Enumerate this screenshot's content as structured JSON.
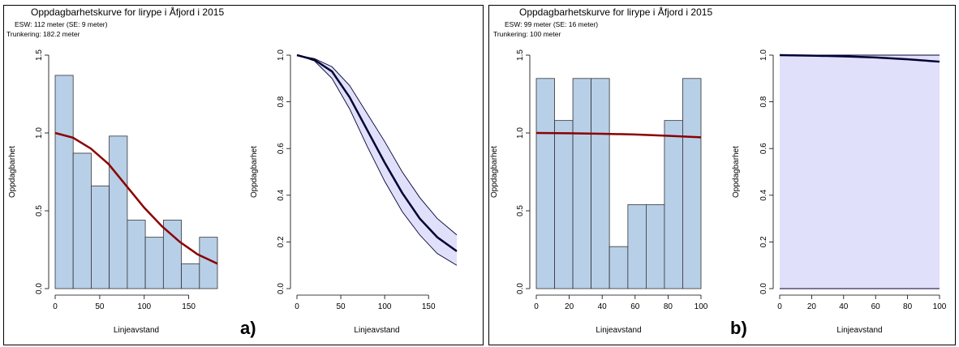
{
  "panels": [
    {
      "label": "a)",
      "title": "Oppdagbarhetskurve for lirype i Åfjord i 2015",
      "esw": "ESW:  112 meter (SE: 9 meter)",
      "truncation": "Trunkering:  182.2 meter"
    },
    {
      "label": "b)",
      "title": "Oppdagbarhetskurve for lirype i Åfjord i 2015",
      "esw": "ESW:  99 meter (SE: 16 meter)",
      "truncation": "Trunkering:  100 meter"
    }
  ],
  "colors": {
    "bar_fill": "#b8cfe8",
    "fit_line": "#8b0000",
    "ci_band": "#e0e0fa",
    "mean_line": "#000033"
  },
  "chart_data": [
    {
      "type": "bar",
      "panel": "a",
      "xlabel": "Linjeavstand",
      "ylabel": "Oppdagbarhet",
      "xlim": [
        0,
        182.2
      ],
      "ylim": [
        0,
        1.5
      ],
      "x_ticks": [
        0,
        50,
        100,
        150
      ],
      "y_ticks": [
        "0.0",
        "0.5",
        "1.0",
        "1.5"
      ],
      "bin_edges": [
        0,
        20.2,
        40.5,
        60.7,
        81.0,
        101.2,
        121.5,
        141.7,
        162.0,
        182.2
      ],
      "values": [
        1.37,
        0.87,
        0.66,
        0.98,
        0.44,
        0.33,
        0.44,
        0.16,
        0.33
      ],
      "fit_curve": {
        "x": [
          0,
          20,
          40,
          60,
          80,
          100,
          120,
          140,
          160,
          182.2
        ],
        "y": [
          1.0,
          0.97,
          0.9,
          0.8,
          0.66,
          0.52,
          0.4,
          0.3,
          0.22,
          0.16
        ]
      }
    },
    {
      "type": "line",
      "panel": "a",
      "xlabel": "Linjeavstand",
      "ylabel": "Oppdagbarhet",
      "xlim": [
        0,
        182.2
      ],
      "ylim": [
        0,
        1.0
      ],
      "x_ticks": [
        0,
        50,
        100,
        150
      ],
      "y_ticks": [
        "0.0",
        "0.2",
        "0.4",
        "0.6",
        "0.8",
        "1.0"
      ],
      "x": [
        0,
        20,
        40,
        60,
        80,
        100,
        120,
        140,
        160,
        182.2
      ],
      "mean": [
        1.0,
        0.98,
        0.93,
        0.82,
        0.68,
        0.54,
        0.41,
        0.3,
        0.22,
        0.16
      ],
      "upper": [
        1.0,
        0.985,
        0.95,
        0.87,
        0.75,
        0.63,
        0.5,
        0.39,
        0.3,
        0.23
      ],
      "lower": [
        1.0,
        0.975,
        0.9,
        0.77,
        0.61,
        0.46,
        0.33,
        0.23,
        0.15,
        0.1
      ]
    },
    {
      "type": "bar",
      "panel": "b",
      "xlabel": "Linjeavstand",
      "ylabel": "Oppdagbarhet",
      "xlim": [
        0,
        100
      ],
      "ylim": [
        0,
        1.5
      ],
      "x_ticks": [
        0,
        20,
        40,
        60,
        80,
        100
      ],
      "y_ticks": [
        "0.0",
        "0.5",
        "1.0",
        "1.5"
      ],
      "bin_edges": [
        0,
        11.1,
        22.2,
        33.3,
        44.4,
        55.6,
        66.7,
        77.8,
        88.9,
        100
      ],
      "values": [
        1.35,
        1.08,
        1.35,
        1.35,
        0.27,
        0.54,
        0.54,
        1.08,
        1.35
      ],
      "fit_curve": {
        "x": [
          0,
          20,
          40,
          60,
          80,
          100
        ],
        "y": [
          1.0,
          0.998,
          0.995,
          0.99,
          0.982,
          0.972
        ]
      }
    },
    {
      "type": "line",
      "panel": "b",
      "xlabel": "Linjeavstand",
      "ylabel": "Oppdagbarhet",
      "xlim": [
        0,
        100
      ],
      "ylim": [
        0,
        1.0
      ],
      "x_ticks": [
        0,
        20,
        40,
        60,
        80,
        100
      ],
      "y_ticks": [
        "0.0",
        "0.2",
        "0.4",
        "0.6",
        "0.8",
        "1.0"
      ],
      "x": [
        0,
        20,
        40,
        60,
        80,
        100
      ],
      "mean": [
        1.0,
        0.998,
        0.995,
        0.99,
        0.982,
        0.972
      ],
      "upper": [
        1.0,
        1.0,
        1.0,
        1.0,
        1.0,
        1.0
      ],
      "lower": [
        0,
        0,
        0,
        0,
        0,
        0
      ]
    }
  ]
}
